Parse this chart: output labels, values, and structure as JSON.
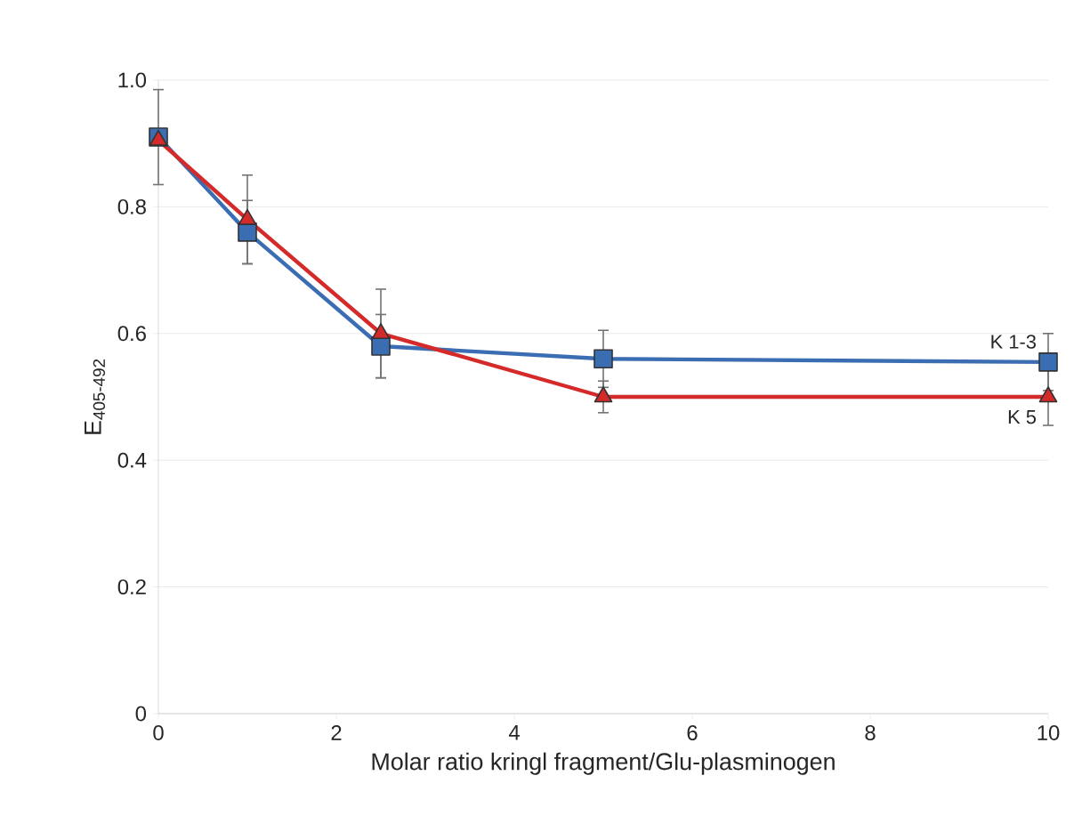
{
  "chart_data": {
    "type": "line",
    "xlabel": "Molar ratio kringl fragment/Glu-plasminogen",
    "ylabel": "E$_{405-492}$",
    "x": [
      0,
      1,
      2.5,
      5,
      10
    ],
    "series": [
      {
        "name": "K 1-3",
        "color": "#3b6db3",
        "marker": "square",
        "values": [
          0.91,
          0.76,
          0.58,
          0.56,
          0.555
        ],
        "errors": [
          0.075,
          0.05,
          0.05,
          0.045,
          0.045
        ]
      },
      {
        "name": "K 5",
        "color": "#d42a2a",
        "marker": "triangle",
        "values": [
          0.905,
          0.78,
          0.6,
          0.5,
          0.5
        ],
        "errors": [
          null,
          0.07,
          0.07,
          0.025,
          0.045
        ]
      }
    ],
    "xlim": [
      0,
      10
    ],
    "ylim": [
      0,
      1
    ],
    "xticks": [
      0,
      2,
      4,
      6,
      8,
      10
    ],
    "yticks": [
      0,
      0.2,
      0.4,
      0.6,
      0.8,
      {
        "value": 1,
        "label": "1.0"
      }
    ],
    "grid": "y",
    "line_style": "solid"
  }
}
